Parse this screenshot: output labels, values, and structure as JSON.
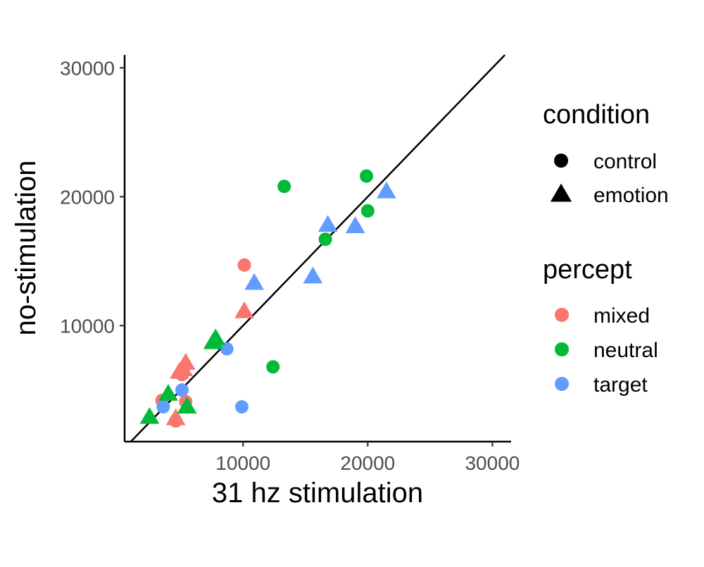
{
  "chart_data": {
    "type": "scatter",
    "xlabel": "31 hz stimulation",
    "ylabel": "no-stimulation",
    "xlim": [
      500,
      31500
    ],
    "ylim": [
      1000,
      31000
    ],
    "x_ticks": [
      10000,
      20000,
      30000
    ],
    "y_ticks": [
      10000,
      20000,
      30000
    ],
    "x_tick_labels": [
      "10000",
      "20000",
      "30000"
    ],
    "y_tick_labels": [
      "10000",
      "20000",
      "30000"
    ],
    "grid": false,
    "reference_line": {
      "slope": 1,
      "intercept": 0
    },
    "legend_position": "right",
    "legends": {
      "condition": {
        "title": "condition",
        "entries": [
          {
            "label": "control",
            "shape": "circle"
          },
          {
            "label": "emotion",
            "shape": "triangle"
          }
        ]
      },
      "percept": {
        "title": "percept",
        "entries": [
          {
            "label": "mixed",
            "color": "#F8766D"
          },
          {
            "label": "neutral",
            "color": "#00BA38"
          },
          {
            "label": "target",
            "color": "#619CFF"
          }
        ]
      }
    },
    "points": [
      {
        "x": 3500,
        "y": 4200,
        "condition": "control",
        "percept": "mixed"
      },
      {
        "x": 5400,
        "y": 4100,
        "condition": "control",
        "percept": "mixed"
      },
      {
        "x": 10100,
        "y": 14700,
        "condition": "control",
        "percept": "mixed"
      },
      {
        "x": 5100,
        "y": 6200,
        "condition": "control",
        "percept": "mixed"
      },
      {
        "x": 4600,
        "y": 2600,
        "condition": "control",
        "percept": "mixed"
      },
      {
        "x": 13300,
        "y": 20800,
        "condition": "control",
        "percept": "neutral"
      },
      {
        "x": 19900,
        "y": 21600,
        "condition": "control",
        "percept": "neutral"
      },
      {
        "x": 20000,
        "y": 18900,
        "condition": "control",
        "percept": "neutral"
      },
      {
        "x": 16600,
        "y": 16700,
        "condition": "control",
        "percept": "neutral"
      },
      {
        "x": 12400,
        "y": 6800,
        "condition": "control",
        "percept": "neutral"
      },
      {
        "x": 8700,
        "y": 8200,
        "condition": "control",
        "percept": "target"
      },
      {
        "x": 9900,
        "y": 3700,
        "condition": "control",
        "percept": "target"
      },
      {
        "x": 5100,
        "y": 5000,
        "condition": "control",
        "percept": "target"
      },
      {
        "x": 3600,
        "y": 3700,
        "condition": "control",
        "percept": "target"
      },
      {
        "x": 10100,
        "y": 11100,
        "condition": "emotion",
        "percept": "mixed"
      },
      {
        "x": 5400,
        "y": 7100,
        "condition": "emotion",
        "percept": "mixed"
      },
      {
        "x": 4900,
        "y": 6400,
        "condition": "emotion",
        "percept": "mixed"
      },
      {
        "x": 5200,
        "y": 6600,
        "condition": "emotion",
        "percept": "mixed"
      },
      {
        "x": 4600,
        "y": 2800,
        "condition": "emotion",
        "percept": "mixed"
      },
      {
        "x": 7600,
        "y": 8700,
        "condition": "emotion",
        "percept": "neutral"
      },
      {
        "x": 7800,
        "y": 9000,
        "condition": "emotion",
        "percept": "neutral"
      },
      {
        "x": 2500,
        "y": 2900,
        "condition": "emotion",
        "percept": "neutral"
      },
      {
        "x": 4000,
        "y": 4700,
        "condition": "emotion",
        "percept": "neutral"
      },
      {
        "x": 5500,
        "y": 3700,
        "condition": "emotion",
        "percept": "neutral"
      },
      {
        "x": 21500,
        "y": 20400,
        "condition": "emotion",
        "percept": "target"
      },
      {
        "x": 16800,
        "y": 17800,
        "condition": "emotion",
        "percept": "target"
      },
      {
        "x": 19000,
        "y": 17700,
        "condition": "emotion",
        "percept": "target"
      },
      {
        "x": 15600,
        "y": 13800,
        "condition": "emotion",
        "percept": "target"
      },
      {
        "x": 10900,
        "y": 13300,
        "condition": "emotion",
        "percept": "target"
      }
    ]
  }
}
